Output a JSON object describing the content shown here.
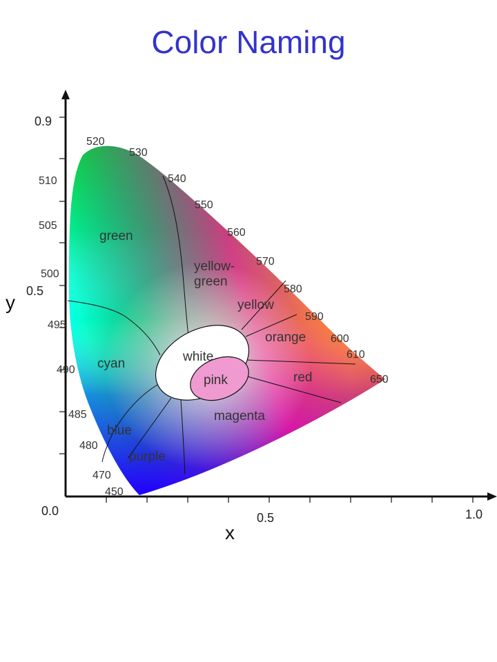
{
  "title": "Color Naming",
  "axes": {
    "x_label": "x",
    "y_label": "y",
    "x_ticks": [
      "0.0",
      "0.5",
      "1.0"
    ],
    "y_ticks": [
      "0.9",
      "0.5"
    ]
  },
  "wavelength_labels": [
    "520",
    "530",
    "510",
    "540",
    "550",
    "505",
    "560",
    "570",
    "500",
    "580",
    "590",
    "495",
    "600",
    "610",
    "490",
    "650",
    "485",
    "480",
    "470",
    "450"
  ],
  "regions": {
    "green": "green",
    "yellow_green_1": "yellow-",
    "yellow_green_2": "green",
    "yellow": "yellow",
    "orange": "orange",
    "white": "white",
    "pink": "pink",
    "cyan": "cyan",
    "red": "red",
    "magenta": "magenta",
    "blue": "blue",
    "purple": "purple"
  }
}
